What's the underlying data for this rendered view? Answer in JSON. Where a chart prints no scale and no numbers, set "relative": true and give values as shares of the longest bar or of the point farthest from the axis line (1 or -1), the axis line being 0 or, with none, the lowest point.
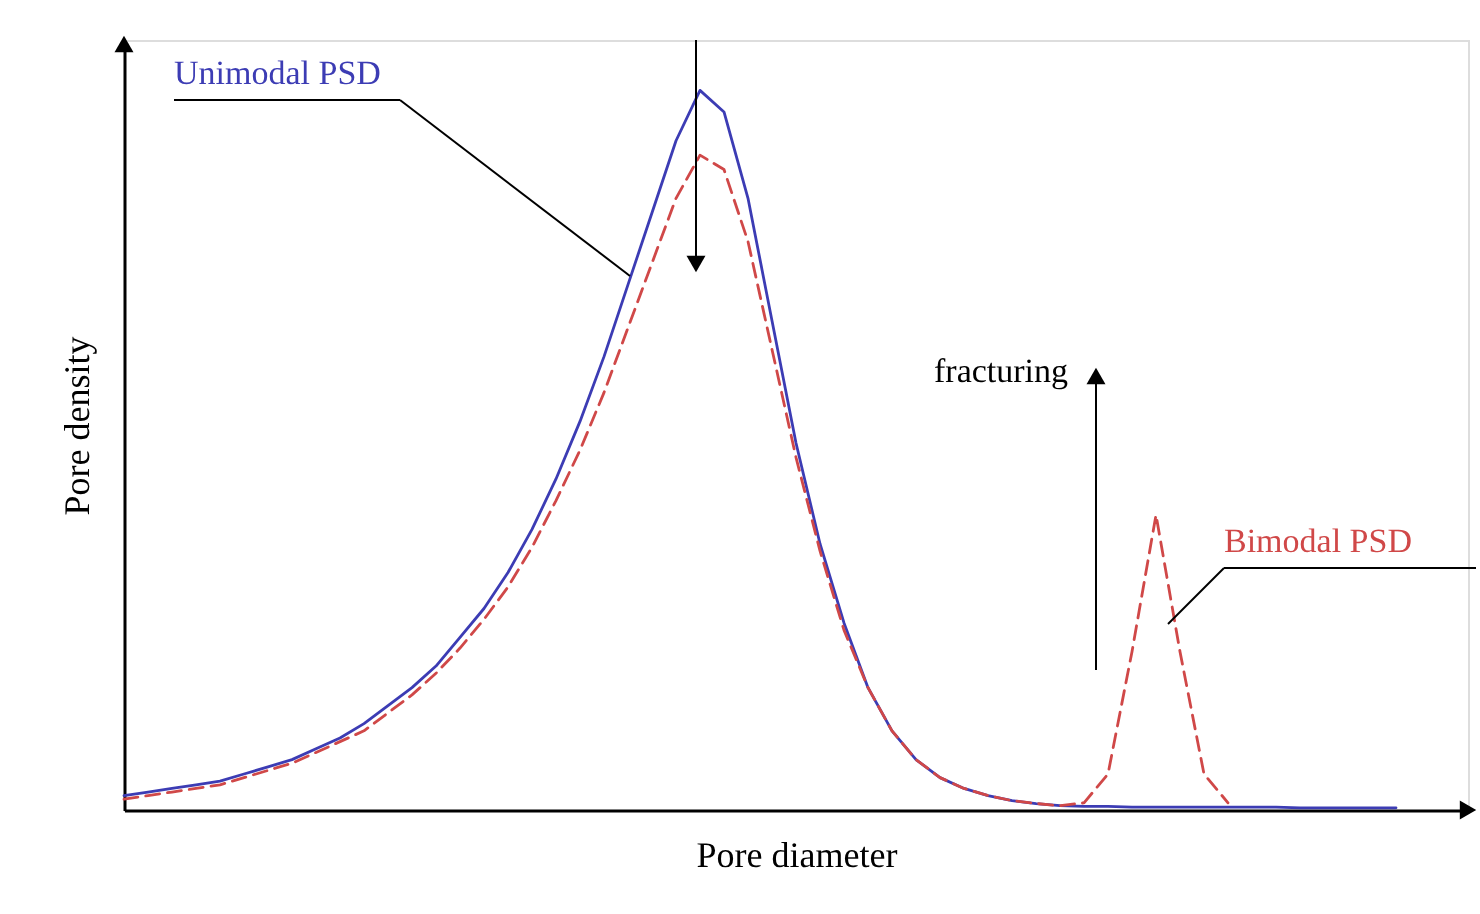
{
  "chart_data": {
    "type": "line",
    "relative": true,
    "xlabel": "Pore diameter",
    "ylabel": "Pore density",
    "grid": false,
    "categories": [
      null,
      null,
      null,
      null,
      null,
      null,
      null,
      null,
      null,
      null,
      null,
      null,
      null,
      null,
      null,
      null,
      null,
      null,
      null,
      null,
      null,
      null,
      null,
      null,
      null,
      null,
      null,
      null,
      null,
      null,
      null,
      null,
      null,
      null,
      null,
      null,
      null,
      null,
      null,
      null,
      null,
      null,
      null,
      null,
      null,
      null,
      null,
      null,
      null,
      null,
      null,
      null,
      null,
      null
    ],
    "series": [
      {
        "name": "Unimodal PSD",
        "color": "#3c3cb4",
        "line_style": "solid",
        "values": [
          0.02,
          0.025,
          0.03,
          0.035,
          0.04,
          0.05,
          0.06,
          0.07,
          0.085,
          0.1,
          0.12,
          0.145,
          0.17,
          0.2,
          0.24,
          0.28,
          0.33,
          0.39,
          0.46,
          0.54,
          0.63,
          0.73,
          0.83,
          0.93,
          1.0,
          0.97,
          0.85,
          0.68,
          0.51,
          0.37,
          0.26,
          0.17,
          0.11,
          0.07,
          0.045,
          0.03,
          0.02,
          0.013,
          0.009,
          0.006,
          0.005,
          0.005,
          0.004,
          0.004,
          0.004,
          0.004,
          0.004,
          0.004,
          0.004,
          0.003,
          0.003,
          0.003,
          0.003,
          0.003
        ]
      },
      {
        "name": "Bimodal PSD",
        "color": "#d04848",
        "line_style": "dashed",
        "values": [
          0.015,
          0.02,
          0.025,
          0.03,
          0.035,
          0.045,
          0.055,
          0.065,
          0.08,
          0.095,
          0.11,
          0.135,
          0.16,
          0.19,
          0.225,
          0.265,
          0.31,
          0.365,
          0.43,
          0.5,
          0.58,
          0.67,
          0.76,
          0.85,
          0.91,
          0.89,
          0.79,
          0.64,
          0.49,
          0.36,
          0.25,
          0.17,
          0.11,
          0.07,
          0.045,
          0.03,
          0.02,
          0.013,
          0.009,
          0.006,
          0.01,
          0.05,
          0.22,
          0.41,
          0.22,
          0.05,
          0.01,
          null,
          null,
          null,
          null,
          null,
          null,
          null
        ]
      }
    ],
    "annotations": [
      "fracturing"
    ]
  }
}
